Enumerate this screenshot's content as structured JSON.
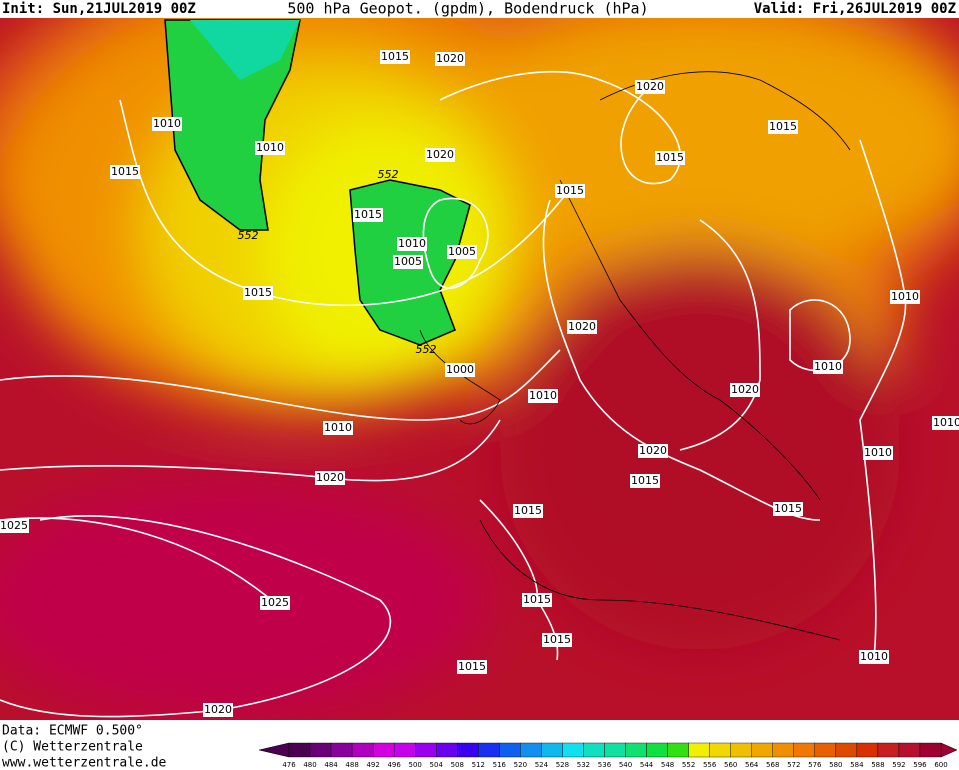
{
  "header": {
    "init": "Init: Sun,21JUL2019 00Z",
    "title": "500 hPa Geopot. (gpdm), Bodendruck (hPa)",
    "valid": "Valid: Fri,26JUL2019 00Z"
  },
  "isobar_labels": [
    1015,
    1020,
    1020,
    1010,
    1010,
    1015,
    1015,
    1020,
    1015,
    1015,
    1015,
    1010,
    1005,
    1005,
    1015,
    1010,
    1020,
    1010,
    1000,
    1010,
    1020,
    1010,
    1020,
    1010,
    1020,
    1015,
    1015,
    1015,
    1025,
    1015,
    1025,
    1015,
    1010,
    1015,
    1020,
    1010
  ],
  "geopotential_labels": [
    552,
    552,
    552
  ],
  "footer": {
    "data": "Data: ECMWF  0.500°",
    "copyright": "(C) Wetterzentrale",
    "url": "www.wetterzentrale.de"
  },
  "colorbar": {
    "labels": [
      476,
      480,
      484,
      488,
      492,
      496,
      500,
      504,
      508,
      512,
      516,
      520,
      524,
      528,
      532,
      536,
      540,
      544,
      548,
      552,
      556,
      560,
      564,
      568,
      572,
      576,
      580,
      584,
      588,
      592,
      596,
      600
    ],
    "colors": [
      "#4b0050",
      "#6a0078",
      "#8a009a",
      "#b000c0",
      "#d400e0",
      "#c800f0",
      "#9a00f0",
      "#6a00f0",
      "#3a00f0",
      "#1a30f0",
      "#1060f0",
      "#1090f0",
      "#10b8f0",
      "#10e0f0",
      "#10e0c0",
      "#10e0a0",
      "#10e070",
      "#10e040",
      "#30e010",
      "#f0f000",
      "#f0d800",
      "#f0c000",
      "#f0a800",
      "#f09000",
      "#f07800",
      "#e86000",
      "#e04800",
      "#d83000",
      "#c82020",
      "#b81030",
      "#a00030"
    ]
  }
}
